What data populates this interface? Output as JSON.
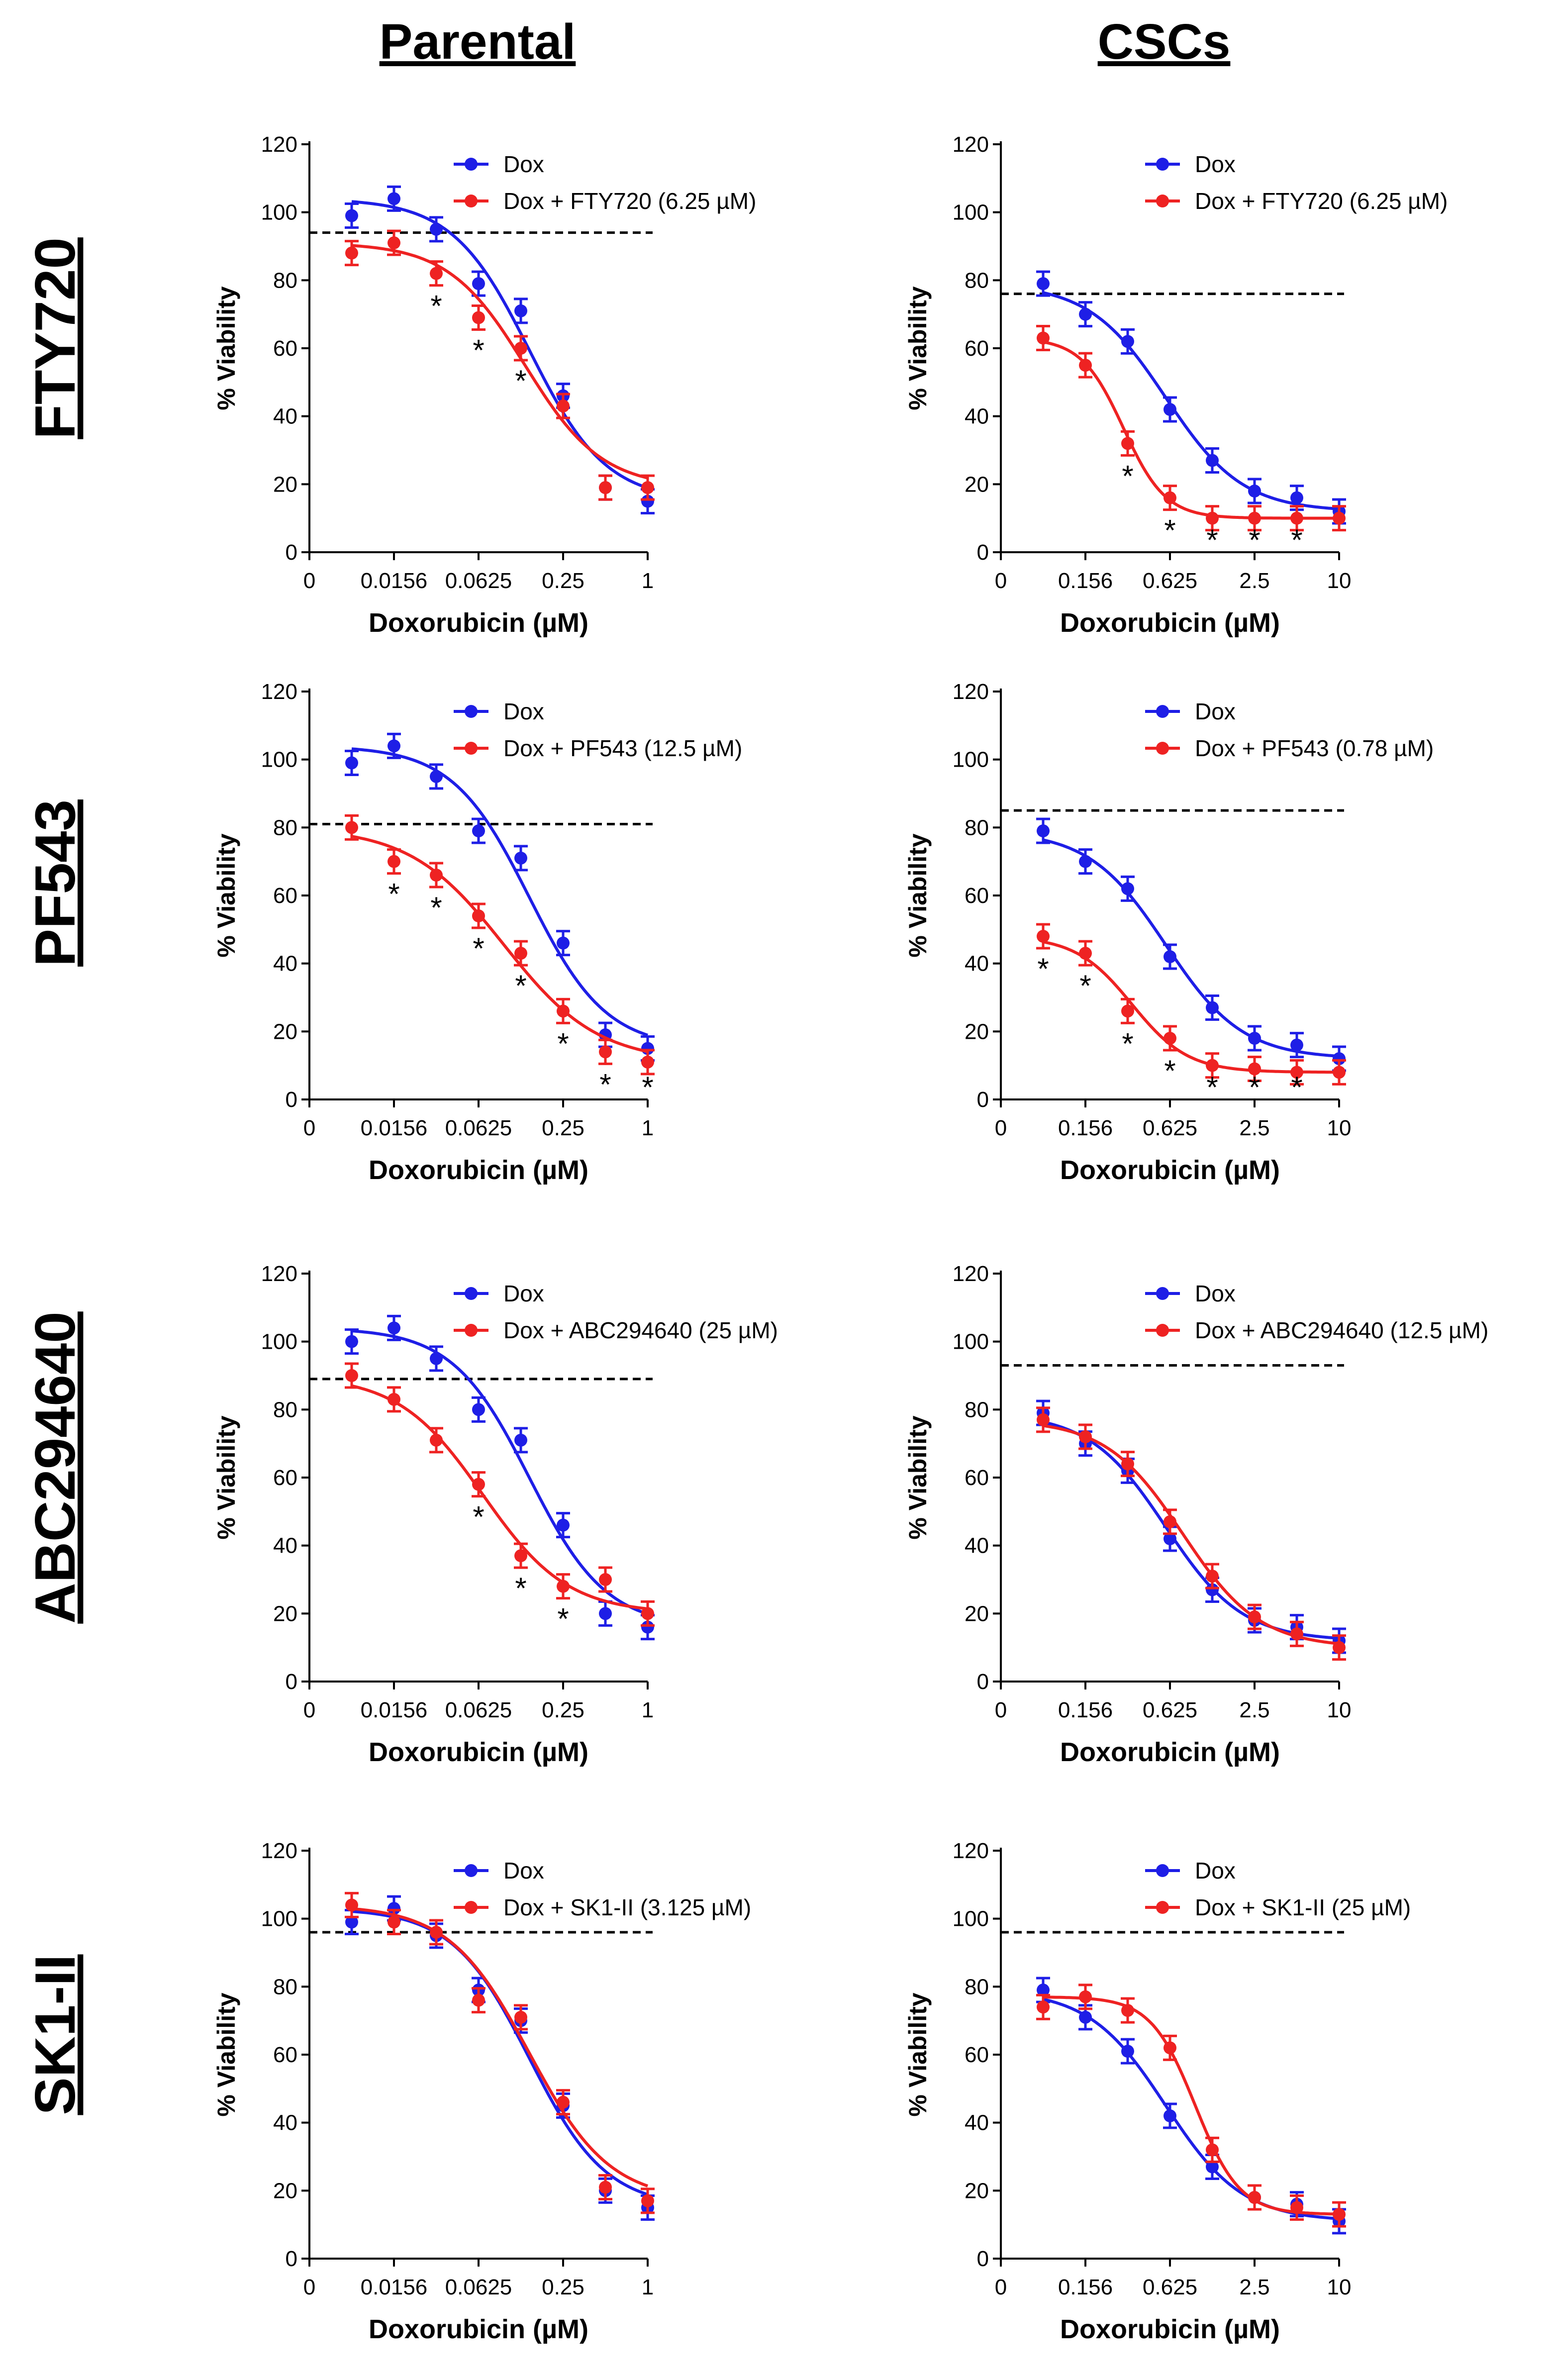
{
  "column_titles": [
    "Parental",
    "CSCs"
  ],
  "row_titles": [
    "FTY720",
    "PF543",
    "ABC294640",
    "SK1-II"
  ],
  "colors": {
    "dox": "#1e1ee6",
    "combo": "#ee2222",
    "reference": "#000000"
  },
  "chart_data": [
    {
      "type": "line",
      "title": "Parental",
      "row": "FTY720",
      "xlabel": "Doxorubicin (µM)",
      "ylabel": "% Viability",
      "ylim": [
        0,
        120
      ],
      "yticks": [
        "0",
        "20",
        "40",
        "60",
        "80",
        "100",
        "120"
      ],
      "xticks": [
        "0",
        "0.0156",
        "0.0625",
        "0.25",
        "1"
      ],
      "reference_line": 94,
      "series": [
        {
          "name": "Dox",
          "values": [
            99,
            104,
            95,
            79,
            71,
            46,
            19,
            15
          ]
        },
        {
          "name": "Dox + FTY720 (6.25 µM)",
          "values": [
            88,
            91,
            82,
            69,
            60,
            43,
            19,
            19
          ]
        }
      ],
      "significant": [
        false,
        false,
        true,
        true,
        true,
        false,
        false,
        false
      ]
    },
    {
      "type": "line",
      "title": "CSCs",
      "row": "FTY720",
      "xlabel": "Doxorubicin (µM)",
      "ylabel": "% Viability",
      "ylim": [
        0,
        120
      ],
      "yticks": [
        "0",
        "20",
        "40",
        "60",
        "80",
        "100",
        "120"
      ],
      "xticks": [
        "0",
        "0.156",
        "0.625",
        "2.5",
        "10"
      ],
      "reference_line": 76,
      "series": [
        {
          "name": "Dox",
          "values": [
            79,
            70,
            62,
            42,
            27,
            18,
            16,
            12
          ]
        },
        {
          "name": "Dox + FTY720 (6.25 µM)",
          "values": [
            63,
            55,
            32,
            16,
            10,
            10,
            10,
            10
          ]
        }
      ],
      "significant": [
        false,
        false,
        true,
        true,
        true,
        true,
        true,
        false
      ]
    },
    {
      "type": "line",
      "title": "Parental",
      "row": "PF543",
      "xlabel": "Doxorubicin (µM)",
      "ylabel": "% Viability",
      "ylim": [
        0,
        120
      ],
      "yticks": [
        "0",
        "20",
        "40",
        "60",
        "80",
        "100",
        "120"
      ],
      "xticks": [
        "0",
        "0.0156",
        "0.0625",
        "0.25",
        "1"
      ],
      "reference_line": 81,
      "series": [
        {
          "name": "Dox",
          "values": [
            99,
            104,
            95,
            79,
            71,
            46,
            19,
            15
          ]
        },
        {
          "name": "Dox + PF543 (12.5 µM)",
          "values": [
            80,
            70,
            66,
            54,
            43,
            26,
            14,
            11
          ]
        }
      ],
      "significant": [
        false,
        true,
        true,
        true,
        true,
        true,
        true,
        true
      ]
    },
    {
      "type": "line",
      "title": "CSCs",
      "row": "PF543",
      "xlabel": "Doxorubicin (µM)",
      "ylabel": "% Viability",
      "ylim": [
        0,
        120
      ],
      "yticks": [
        "0",
        "20",
        "40",
        "60",
        "80",
        "100",
        "120"
      ],
      "xticks": [
        "0",
        "0.156",
        "0.625",
        "2.5",
        "10"
      ],
      "reference_line": 85,
      "series": [
        {
          "name": "Dox",
          "values": [
            79,
            70,
            62,
            42,
            27,
            18,
            16,
            12
          ]
        },
        {
          "name": "Dox + PF543 (0.78 µM)",
          "values": [
            48,
            43,
            26,
            18,
            10,
            9,
            8,
            8
          ]
        }
      ],
      "significant": [
        true,
        true,
        true,
        true,
        true,
        true,
        true,
        false
      ]
    },
    {
      "type": "line",
      "title": "Parental",
      "row": "ABC294640",
      "xlabel": "Doxorubicin (µM)",
      "ylabel": "% Viability",
      "ylim": [
        0,
        120
      ],
      "yticks": [
        "0",
        "20",
        "40",
        "60",
        "80",
        "100",
        "120"
      ],
      "xticks": [
        "0",
        "0.0156",
        "0.0625",
        "0.25",
        "1"
      ],
      "reference_line": 89,
      "series": [
        {
          "name": "Dox",
          "values": [
            100,
            104,
            95,
            80,
            71,
            46,
            20,
            16
          ]
        },
        {
          "name": "Dox + ABC294640 (25 µM)",
          "values": [
            90,
            83,
            71,
            58,
            37,
            28,
            30,
            20
          ]
        }
      ],
      "significant": [
        false,
        false,
        false,
        true,
        true,
        true,
        false,
        false
      ]
    },
    {
      "type": "line",
      "title": "CSCs",
      "row": "ABC294640",
      "xlabel": "Doxorubicin (µM)",
      "ylabel": "% Viability",
      "ylim": [
        0,
        120
      ],
      "yticks": [
        "0",
        "20",
        "40",
        "60",
        "80",
        "100",
        "120"
      ],
      "xticks": [
        "0",
        "0.156",
        "0.625",
        "2.5",
        "10"
      ],
      "reference_line": 93,
      "series": [
        {
          "name": "Dox",
          "values": [
            79,
            70,
            62,
            42,
            27,
            18,
            16,
            12
          ]
        },
        {
          "name": "Dox + ABC294640 (12.5 µM)",
          "values": [
            77,
            72,
            64,
            47,
            31,
            19,
            14,
            10
          ]
        }
      ],
      "significant": [
        false,
        false,
        false,
        false,
        false,
        false,
        false,
        false
      ]
    },
    {
      "type": "line",
      "title": "Parental",
      "row": "SK1-II",
      "xlabel": "Doxorubicin (µM)",
      "ylabel": "% Viability",
      "ylim": [
        0,
        120
      ],
      "yticks": [
        "0",
        "20",
        "40",
        "60",
        "80",
        "100",
        "120"
      ],
      "xticks": [
        "0",
        "0.0156",
        "0.0625",
        "0.25",
        "1"
      ],
      "reference_line": 96,
      "series": [
        {
          "name": "Dox",
          "values": [
            99,
            103,
            95,
            79,
            70,
            45,
            20,
            15
          ]
        },
        {
          "name": "Dox + SK1-II (3.125 µM)",
          "values": [
            104,
            99,
            96,
            76,
            71,
            46,
            21,
            17
          ]
        }
      ],
      "significant": [
        false,
        false,
        false,
        false,
        false,
        false,
        false,
        false
      ]
    },
    {
      "type": "line",
      "title": "CSCs",
      "row": "SK1-II",
      "xlabel": "Doxorubicin (µM)",
      "ylabel": "% Viability",
      "ylim": [
        0,
        120
      ],
      "yticks": [
        "0",
        "20",
        "40",
        "60",
        "80",
        "100",
        "120"
      ],
      "xticks": [
        "0",
        "0.156",
        "0.625",
        "2.5",
        "10"
      ],
      "reference_line": 96,
      "series": [
        {
          "name": "Dox",
          "values": [
            79,
            71,
            61,
            42,
            27,
            18,
            16,
            11
          ]
        },
        {
          "name": "Dox + SK1-II (25 µM)",
          "values": [
            74,
            77,
            73,
            62,
            32,
            18,
            15,
            13
          ]
        }
      ],
      "significant": [
        false,
        false,
        false,
        false,
        false,
        false,
        false,
        false
      ]
    }
  ]
}
